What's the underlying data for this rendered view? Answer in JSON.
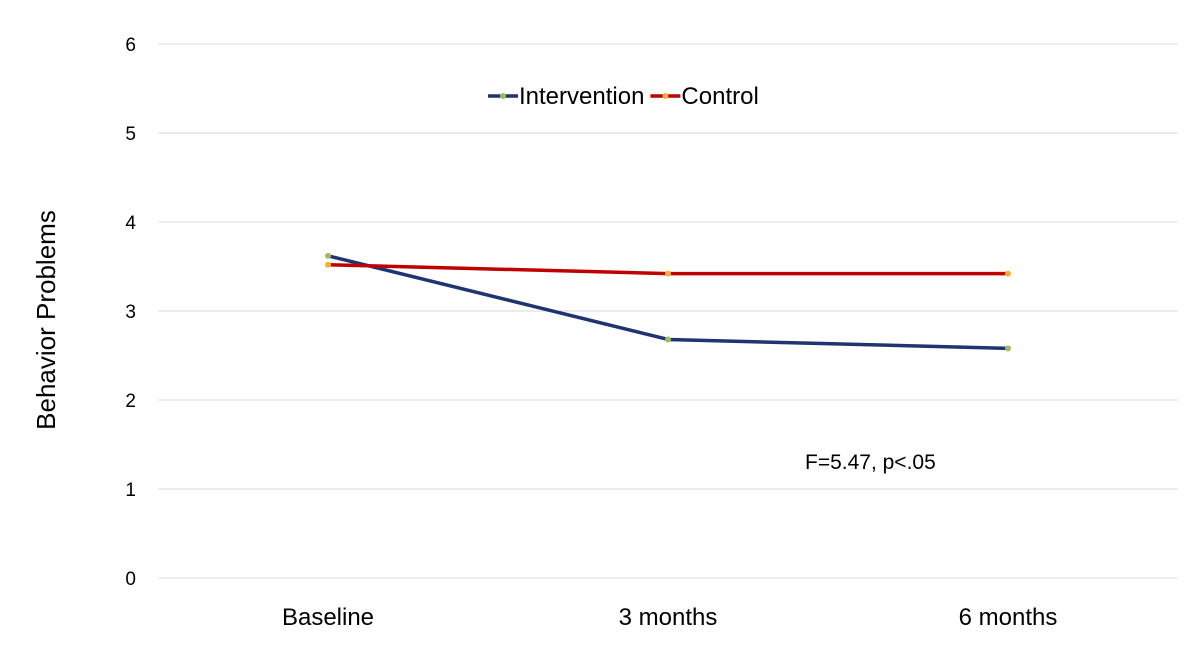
{
  "chart_data": {
    "type": "line",
    "title": "",
    "xlabel": "",
    "ylabel": "Behavior Problems",
    "categories": [
      "Baseline",
      "3 months",
      "6 months"
    ],
    "ylim": [
      0,
      6
    ],
    "yticks": [
      "0",
      "1",
      "2",
      "3",
      "4",
      "5",
      "6"
    ],
    "grid": true,
    "legend_position": "top-center",
    "annotation": "F=5.47, p<.05",
    "series": [
      {
        "name": "Intervention",
        "values": [
          3.62,
          2.68,
          2.58
        ],
        "color": "#1f3470",
        "marker_color": "#9dbb61"
      },
      {
        "name": "Control",
        "values": [
          3.52,
          3.42,
          3.42
        ],
        "color": "#c00000",
        "marker_color": "#f2b134"
      }
    ]
  }
}
